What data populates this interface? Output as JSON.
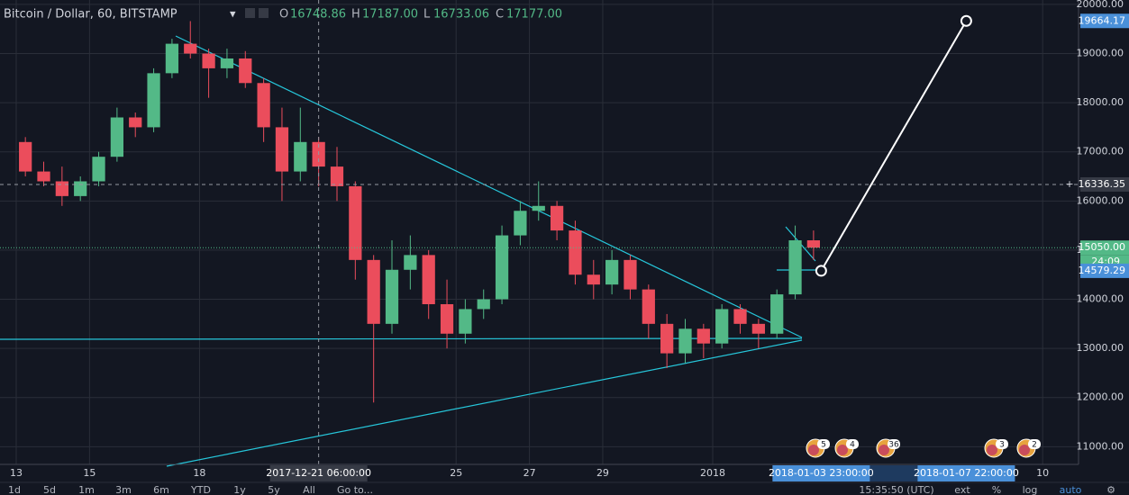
{
  "header": {
    "symbol": "Bitcoin / Dollar, 60, BITSTAMP",
    "o_label": "O",
    "o": "16748.86",
    "h_label": "H",
    "h": "17187.00",
    "l_label": "L",
    "l": "16733.06",
    "c_label": "C",
    "c": "17177.00"
  },
  "chart_data": {
    "type": "candlestick",
    "x": [
      "2017-12-13 00:00",
      "2017-12-13 12:00",
      "2017-12-14 00:00",
      "2017-12-14 12:00",
      "2017-12-15 00:00",
      "2017-12-15 12:00",
      "2017-12-16 00:00",
      "2017-12-16 12:00",
      "2017-12-17 00:00",
      "2017-12-17 12:00",
      "2017-12-18 00:00",
      "2017-12-18 12:00",
      "2017-12-19 00:00",
      "2017-12-19 12:00",
      "2017-12-20 00:00",
      "2017-12-20 12:00",
      "2017-12-21 00:00",
      "2017-12-21 12:00",
      "2017-12-22 00:00",
      "2017-12-22 12:00",
      "2017-12-23 00:00",
      "2017-12-23 12:00",
      "2017-12-24 00:00",
      "2017-12-24 12:00",
      "2017-12-25 00:00",
      "2017-12-25 12:00",
      "2017-12-26 00:00",
      "2017-12-26 12:00",
      "2017-12-27 00:00",
      "2017-12-27 12:00",
      "2017-12-28 00:00",
      "2017-12-28 12:00",
      "2017-12-29 00:00",
      "2017-12-29 12:00",
      "2017-12-30 00:00",
      "2017-12-30 12:00",
      "2017-12-31 00:00",
      "2017-12-31 12:00",
      "2018-01-01 00:00",
      "2018-01-01 12:00",
      "2018-01-02 00:00",
      "2018-01-02 12:00",
      "2018-01-03 00:00",
      "2018-01-03 12:00"
    ],
    "open": [
      17200,
      16600,
      16400,
      16100,
      16400,
      16900,
      17700,
      17500,
      18600,
      19200,
      19000,
      18700,
      18900,
      18400,
      17500,
      16600,
      17200,
      16700,
      16300,
      14800,
      13500,
      14600,
      14900,
      13900,
      13300,
      13800,
      14000,
      15300,
      15800,
      15900,
      15400,
      14500,
      14300,
      14800,
      14200,
      13500,
      12900,
      13400,
      13100,
      13800,
      13500,
      13300,
      14100,
      15200
    ],
    "high": [
      17300,
      16800,
      16700,
      16500,
      17000,
      17900,
      17800,
      18700,
      19300,
      19660,
      19100,
      19100,
      19050,
      18500,
      17900,
      17900,
      17300,
      17100,
      16400,
      14900,
      15200,
      15300,
      15000,
      14400,
      14000,
      14200,
      15500,
      16000,
      16400,
      16000,
      15600,
      14800,
      15000,
      14900,
      14300,
      13700,
      13600,
      13500,
      13900,
      13900,
      13600,
      14200,
      15500,
      15400
    ],
    "low": [
      16500,
      16300,
      15900,
      16000,
      16300,
      16800,
      17300,
      17400,
      18500,
      18900,
      18100,
      18500,
      18300,
      17200,
      16000,
      16400,
      16300,
      16000,
      14400,
      11900,
      13300,
      14200,
      13600,
      13000,
      13100,
      13600,
      13900,
      15100,
      15600,
      15200,
      14300,
      14000,
      14100,
      14000,
      13200,
      12600,
      12700,
      12800,
      13000,
      13300,
      13000,
      13200,
      14000,
      14800
    ],
    "close": [
      16600,
      16400,
      16100,
      16400,
      16900,
      17700,
      17500,
      18600,
      19200,
      19000,
      18700,
      18900,
      18400,
      17500,
      16600,
      17200,
      16700,
      16300,
      14800,
      13500,
      14600,
      14900,
      13900,
      13300,
      13800,
      14000,
      15300,
      15800,
      15900,
      15400,
      14500,
      14300,
      14800,
      14200,
      13500,
      12900,
      13400,
      13100,
      13800,
      13500,
      13300,
      14100,
      15200,
      15050
    ],
    "up_color": "#53b987",
    "down_color": "#eb4d5c",
    "ylim": [
      10640,
      20090
    ],
    "yticks": [
      {
        "value": 11000,
        "label": "11000.00"
      },
      {
        "value": 12000,
        "label": "12000.00"
      },
      {
        "value": 13000,
        "label": "13000.00"
      },
      {
        "value": 14000,
        "label": "14000.00"
      },
      {
        "value": 15000,
        "label": "15000.00"
      },
      {
        "value": 16000,
        "label": "16000.00"
      },
      {
        "value": 17000,
        "label": "17000.00"
      },
      {
        "value": 18000,
        "label": "18000.00"
      },
      {
        "value": 19000,
        "label": "19000.00"
      },
      {
        "value": 20000,
        "label": "20000.00"
      }
    ],
    "xlim": [
      "2017-12-12 13:23",
      "2018-01-10 23:30"
    ],
    "xticks": [
      {
        "value": "2017-12-13 00:00",
        "label": "13"
      },
      {
        "value": "2017-12-15 00:00",
        "label": "15"
      },
      {
        "value": "2017-12-18 00:00",
        "label": "18"
      },
      {
        "value": "2017-12-25 00:00",
        "label": "25"
      },
      {
        "value": "2017-12-27 00:00",
        "label": "27"
      },
      {
        "value": "2017-12-29 00:00",
        "label": "29"
      },
      {
        "value": "2018-01-01 00:00",
        "label": "2018"
      },
      {
        "value": "2018-01-10 00:00",
        "label": "10"
      }
    ],
    "grid": true,
    "crosshair": {
      "time": {
        "value": "2017-12-21 06:00",
        "label": "2017-12-21 06:00:00"
      },
      "price": {
        "value": 16336.35,
        "label": "16336.35"
      }
    },
    "last_price": {
      "value": 15050,
      "label": "15050.00",
      "countdown": "24:09",
      "color": "#53b987"
    },
    "projection": {
      "start_time": {
        "value": "2018-01-03 23:00",
        "label": "2018-01-03 23:00:00"
      },
      "start_price": {
        "value": 14579.29,
        "label": "14579.29"
      },
      "end_time": {
        "value": "2018-01-07 22:00",
        "label": "2018-01-07 22:00:00"
      },
      "end_price": {
        "value": 19664.17,
        "label": "19664.17"
      }
    }
  },
  "events": [
    "5",
    "4",
    "36",
    "3",
    "2"
  ],
  "toolbar": {
    "ranges": [
      "1d",
      "5d",
      "1m",
      "3m",
      "6m",
      "YTD",
      "1y",
      "5y",
      "All",
      "Go to..."
    ],
    "clock": "15:35:50 (UTC)",
    "options": [
      "ext",
      "%",
      "log",
      "auto"
    ]
  }
}
